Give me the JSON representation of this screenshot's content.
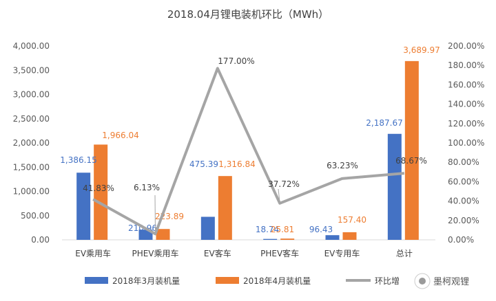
{
  "chart_data": {
    "type": "bar",
    "title": "2018.04月锂电装机环比（MWh）",
    "categories": [
      "EV乘用车",
      "PHEV乘用车",
      "EV客车",
      "PHEV客车",
      "EV专用车",
      "总计"
    ],
    "series": [
      {
        "name": "2018年3月装机量",
        "kind": "bar",
        "axis": "left",
        "color": "#4472c4",
        "values": [
          1386.15,
          210.96,
          475.39,
          18.74,
          96.43,
          2187.67
        ],
        "labels": [
          "1,386.15",
          "210.96",
          "475.39",
          "18.74",
          "96.43",
          "2,187.67"
        ]
      },
      {
        "name": "2018年4月装机量",
        "kind": "bar",
        "axis": "left",
        "color": "#ed7d31",
        "values": [
          1966.04,
          223.89,
          1316.84,
          25.81,
          157.4,
          3689.97
        ],
        "labels": [
          "1,966.04",
          "223.89",
          "1,316.84",
          "25.81",
          "157.40",
          "3,689.97"
        ]
      },
      {
        "name": "环比增长",
        "kind": "line",
        "axis": "right",
        "color": "#a5a5a5",
        "values": [
          41.83,
          6.13,
          177.0,
          37.72,
          63.23,
          68.67
        ],
        "labels": [
          "41.83%",
          "6.13%",
          "177.00%",
          "37.72%",
          "63.23%",
          "68.67%"
        ]
      }
    ],
    "y_left": {
      "range": [
        0,
        4000
      ],
      "ticks": [
        "0.00",
        "500.00",
        "1,000.00",
        "1,500.00",
        "2,000.00",
        "2,500.00",
        "3,000.00",
        "3,500.00",
        "4,000.00"
      ]
    },
    "y_right": {
      "range": [
        0,
        200
      ],
      "ticks": [
        "0.00%",
        "20.00%",
        "40.00%",
        "60.00%",
        "80.00%",
        "100.00%",
        "120.00%",
        "140.00%",
        "160.00%",
        "180.00%",
        "200.00%"
      ]
    },
    "legend": {
      "position": "bottom",
      "items": [
        "2018年3月装机量",
        "2018年4月装机量",
        "环比增"
      ]
    },
    "grid": false
  },
  "watermark": {
    "text": "墨柯观锂"
  }
}
